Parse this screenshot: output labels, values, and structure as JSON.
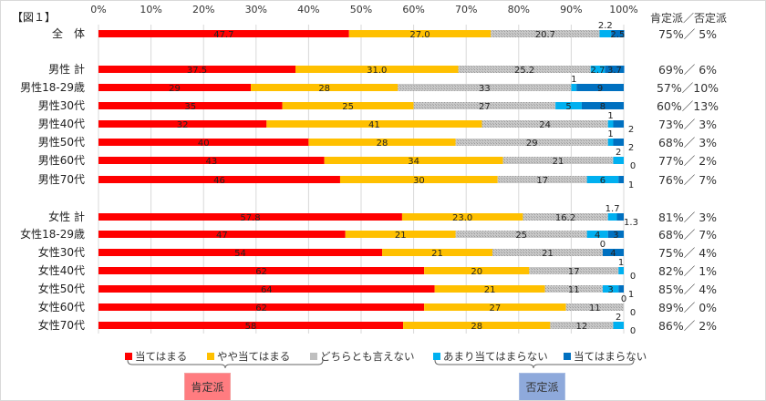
{
  "figure_label": "【図１】",
  "summary_header": "肯定派／否定派",
  "colors": [
    "#FF0000",
    "#FFC000",
    "#BFBFBF",
    "#00B0F0",
    "#0070C0"
  ],
  "chart_data": {
    "type": "bar",
    "orientation": "horizontal-stacked-100",
    "xlim": [
      0,
      100
    ],
    "x_ticks": [
      "0%",
      "10%",
      "20%",
      "30%",
      "40%",
      "50%",
      "60%",
      "70%",
      "80%",
      "90%",
      "100%"
    ],
    "grid": true,
    "legend_position": "bottom",
    "series": [
      {
        "name": "当てはまる"
      },
      {
        "name": "やや当てはまる"
      },
      {
        "name": "どちらとも言えない"
      },
      {
        "name": "あまり当てはまらない"
      },
      {
        "name": "当てはまらない"
      }
    ],
    "rows": [
      {
        "label": "全　体",
        "values": [
          47.7,
          27.0,
          20.7,
          2.2,
          2.5
        ],
        "labels": [
          "47.7",
          "27.0",
          "20.7",
          "2.2",
          "2.5"
        ],
        "summary": "75%／ 5%"
      },
      {
        "label": "男性 計",
        "values": [
          37.5,
          31.0,
          25.2,
          2.7,
          3.7
        ],
        "labels": [
          "37.5",
          "31.0",
          "25.2",
          "2.7",
          "3.7"
        ],
        "summary": "69%／ 6%"
      },
      {
        "label": "男性18-29歳",
        "values": [
          29,
          28,
          33,
          1,
          9
        ],
        "labels": [
          "29",
          "28",
          "33",
          "1",
          "9"
        ],
        "summary": "57%／10%"
      },
      {
        "label": "男性30代",
        "values": [
          35,
          25,
          27,
          5,
          8
        ],
        "labels": [
          "35",
          "25",
          "27",
          "5",
          "8"
        ],
        "summary": "60%／13%"
      },
      {
        "label": "男性40代",
        "values": [
          32,
          41,
          24,
          1,
          2
        ],
        "labels": [
          "32",
          "41",
          "24",
          "1",
          "2"
        ],
        "summary": "73%／ 3%"
      },
      {
        "label": "男性50代",
        "values": [
          40,
          28,
          29,
          1,
          2
        ],
        "labels": [
          "40",
          "28",
          "29",
          "1",
          "2"
        ],
        "summary": "68%／ 3%"
      },
      {
        "label": "男性60代",
        "values": [
          43,
          34,
          21,
          2,
          0
        ],
        "labels": [
          "43",
          "34",
          "21",
          "2",
          "0"
        ],
        "summary": "77%／ 2%"
      },
      {
        "label": "男性70代",
        "values": [
          46,
          30,
          17,
          6,
          1
        ],
        "labels": [
          "46",
          "30",
          "17",
          "6",
          "1"
        ],
        "summary": "76%／ 7%"
      },
      {
        "label": "女性 計",
        "values": [
          57.8,
          23.0,
          16.2,
          1.7,
          1.3
        ],
        "labels": [
          "57.8",
          "23.0",
          "16.2",
          "1.7",
          "1.3"
        ],
        "summary": "81%／ 3%"
      },
      {
        "label": "女性18-29歳",
        "values": [
          47,
          21,
          25,
          4,
          3
        ],
        "labels": [
          "47",
          "21",
          "25",
          "4",
          "3"
        ],
        "summary": "68%／ 7%"
      },
      {
        "label": "女性30代",
        "values": [
          54,
          21,
          21,
          0,
          4
        ],
        "labels": [
          "54",
          "21",
          "21",
          "0",
          "4"
        ],
        "summary": "75%／ 4%"
      },
      {
        "label": "女性40代",
        "values": [
          62,
          20,
          17,
          1,
          0
        ],
        "labels": [
          "62",
          "20",
          "17",
          "1",
          "0"
        ],
        "summary": "82%／ 1%"
      },
      {
        "label": "女性50代",
        "values": [
          64,
          21,
          11,
          3,
          1
        ],
        "labels": [
          "64",
          "21",
          "11",
          "3",
          "1"
        ],
        "summary": "85%／ 4%"
      },
      {
        "label": "女性60代",
        "values": [
          62,
          27,
          11,
          0,
          0
        ],
        "labels": [
          "62",
          "27",
          "11",
          "0",
          "0"
        ],
        "summary": "89%／ 0%"
      },
      {
        "label": "女性70代",
        "values": [
          58,
          28,
          12,
          2,
          0
        ],
        "labels": [
          "58",
          "28",
          "12",
          "2",
          "0"
        ],
        "summary": "86%／ 2%"
      }
    ]
  },
  "groups": {
    "positive": "肯定派",
    "negative": "否定派"
  }
}
